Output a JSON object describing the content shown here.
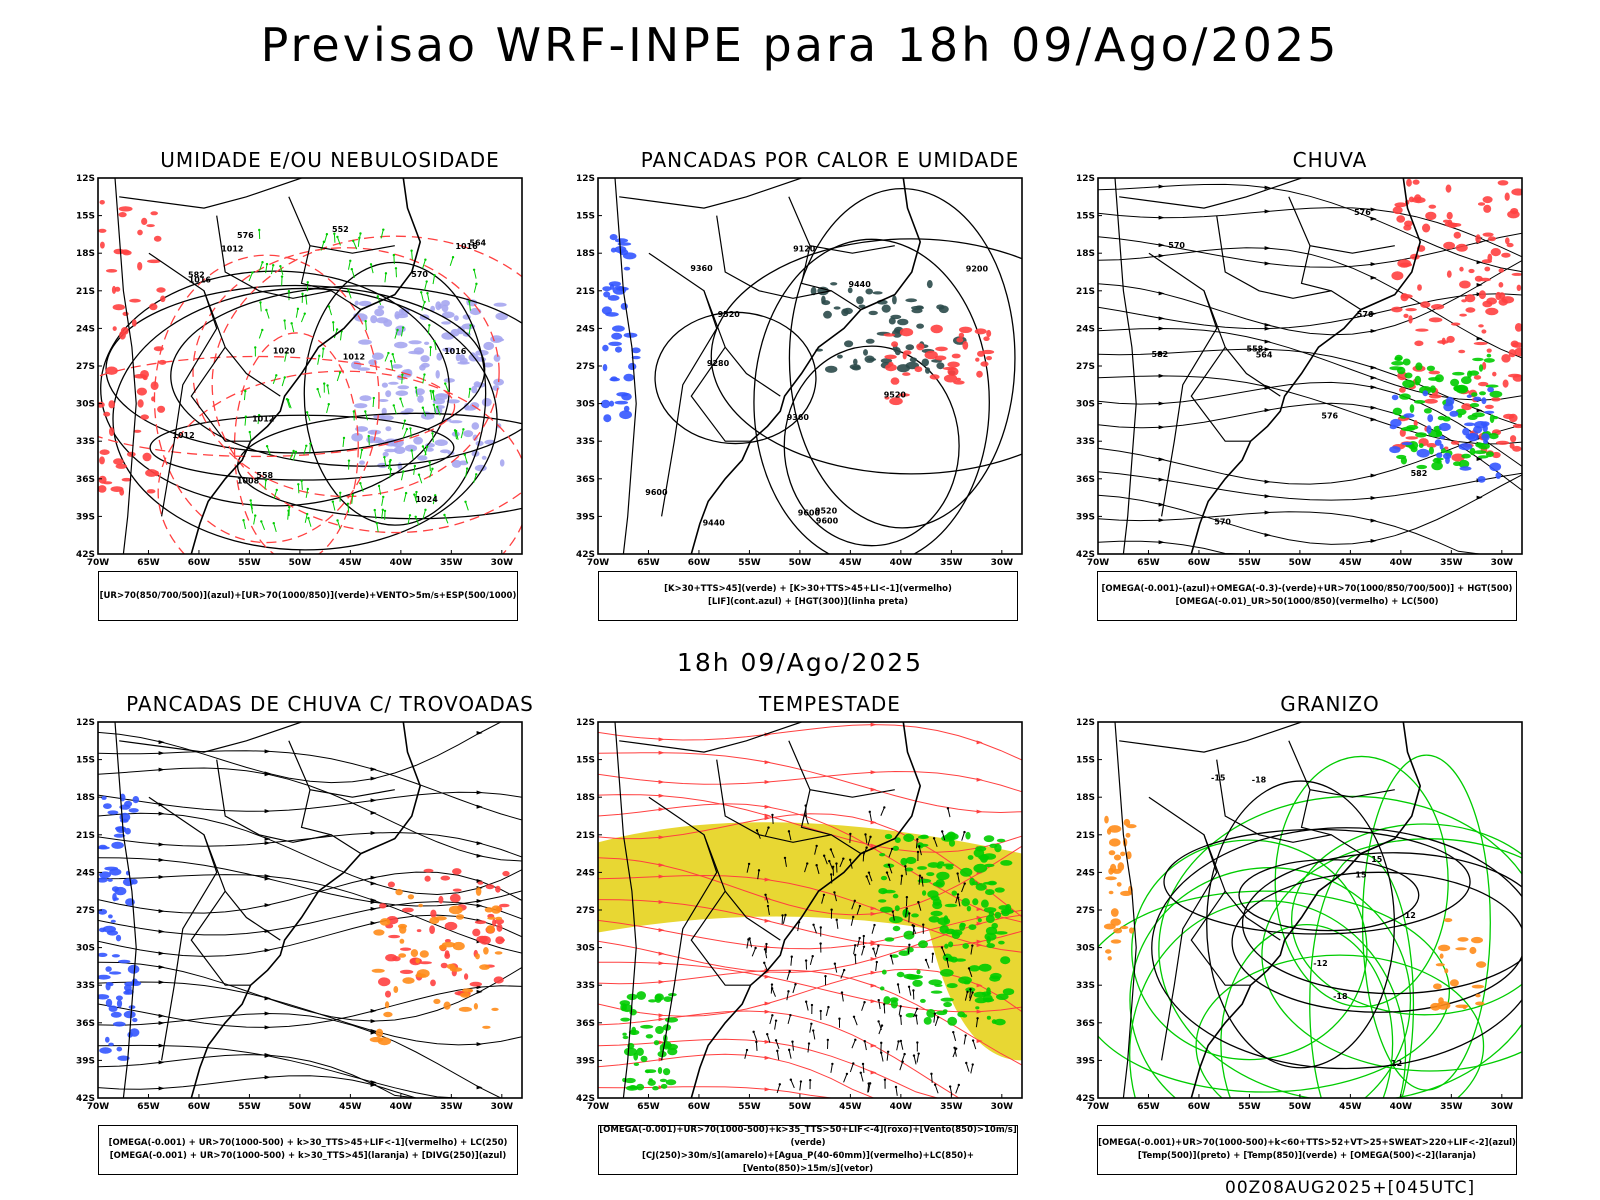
{
  "header": {
    "title": "Previsao WRF-INPE  para 18h 09/Ago/2025"
  },
  "mid_title": "18h 09/Ago/2025",
  "footer": {
    "stamp": "00Z08AUG2025+[045UTC]"
  },
  "axes": {
    "lat_labels": [
      "12S",
      "15S",
      "18S",
      "21S",
      "24S",
      "27S",
      "30S",
      "33S",
      "36S",
      "39S",
      "42S"
    ],
    "lon_labels": [
      "70W",
      "65W",
      "60W",
      "55W",
      "50W",
      "45W",
      "40W",
      "35W",
      "30W"
    ]
  },
  "colors": {
    "blue": "#3355ff",
    "green": "#00cc00",
    "red": "#ff4040",
    "orange": "#ff8c1a",
    "yellow": "#e8d733",
    "lavender": "#a6a6f0",
    "darkteal": "#2b4a4a"
  },
  "panels": [
    {
      "id": "umidade",
      "title": "UMIDADE E/OU NEBULOSIDADE",
      "legend": [
        "[UR>70(850/700/500)](azul)+[UR>70(1000/850)](verde)+VENTO>5m/s+ESP(500/1000)"
      ],
      "contour_labels": [
        "1012",
        "1016",
        "1020",
        "1024",
        "1012",
        "1016",
        "1012",
        "1008",
        "1012",
        "1016",
        "570",
        "576",
        "582",
        "564",
        "558",
        "552"
      ]
    },
    {
      "id": "pancadas-calor",
      "title": "PANCADAS POR CALOR E UMIDADE",
      "legend": [
        "[K>30+TTS>45](verde) + [K>30+TTS>45+LI<-1](vermelho)",
        "[LIF](cont.azul) + [HGT(300)](linha preta)"
      ],
      "contour_labels": [
        "9600",
        "9600",
        "9600",
        "9520",
        "9520",
        "9520",
        "9440",
        "9440",
        "9360",
        "9360",
        "9280",
        "9200",
        "9120"
      ]
    },
    {
      "id": "chuva",
      "title": "CHUVA",
      "legend": [
        "[OMEGA(-0.001)-(azul)+OMEGA(-0.3)-(verde)+UR>70(1000/850/700/500)] + HGT(500)",
        "[OMEGA(-0.01)_UR>50(1000/850)(vermelho) + LC(500)"
      ],
      "contour_labels": [
        "582",
        "582",
        "576",
        "570",
        "564",
        "558",
        "576",
        "570",
        "576"
      ]
    },
    {
      "id": "pancadas-trovoadas",
      "title": "PANCADAS DE CHUVA C/ TROVOADAS",
      "legend": [
        "[OMEGA(-0.001) + UR>70(1000-500) + k>30_TTS>45+LIF<-1](vermelho) + LC(250)",
        "[OMEGA(-0.001) + UR>70(1000-500) + k>30_TTS>45](laranja) + [DIVG(250)](azul)"
      ],
      "contour_labels": []
    },
    {
      "id": "tempestade",
      "title": "TEMPESTADE",
      "legend": [
        "[OMEGA(-0.001)+UR>70(1000-500)+k>35_TTS>50+LIF<-4](roxo)+[Vento(850)>10m/s](verde)",
        "[CJ(250)>30m/s](amarelo)+[Agua_P(40-60mm)](vermelho)+LC(850)+[Vento(850)>15m/s](vetor)"
      ],
      "contour_labels": []
    },
    {
      "id": "granizo",
      "title": "GRANIZO",
      "legend": [
        "[OMEGA(-0.001)+UR>70(1000-500)+k<60+TTS>52+VT>25+SWEAT>220+LIF<-2](azul)",
        "[Temp(500)](preto) + [Temp(850)](verde) + [OMEGA(500)<-2](laranja)"
      ],
      "contour_labels": [
        "15",
        "12",
        "-12",
        "-18",
        "-15",
        "-18",
        "15",
        "12"
      ]
    }
  ]
}
